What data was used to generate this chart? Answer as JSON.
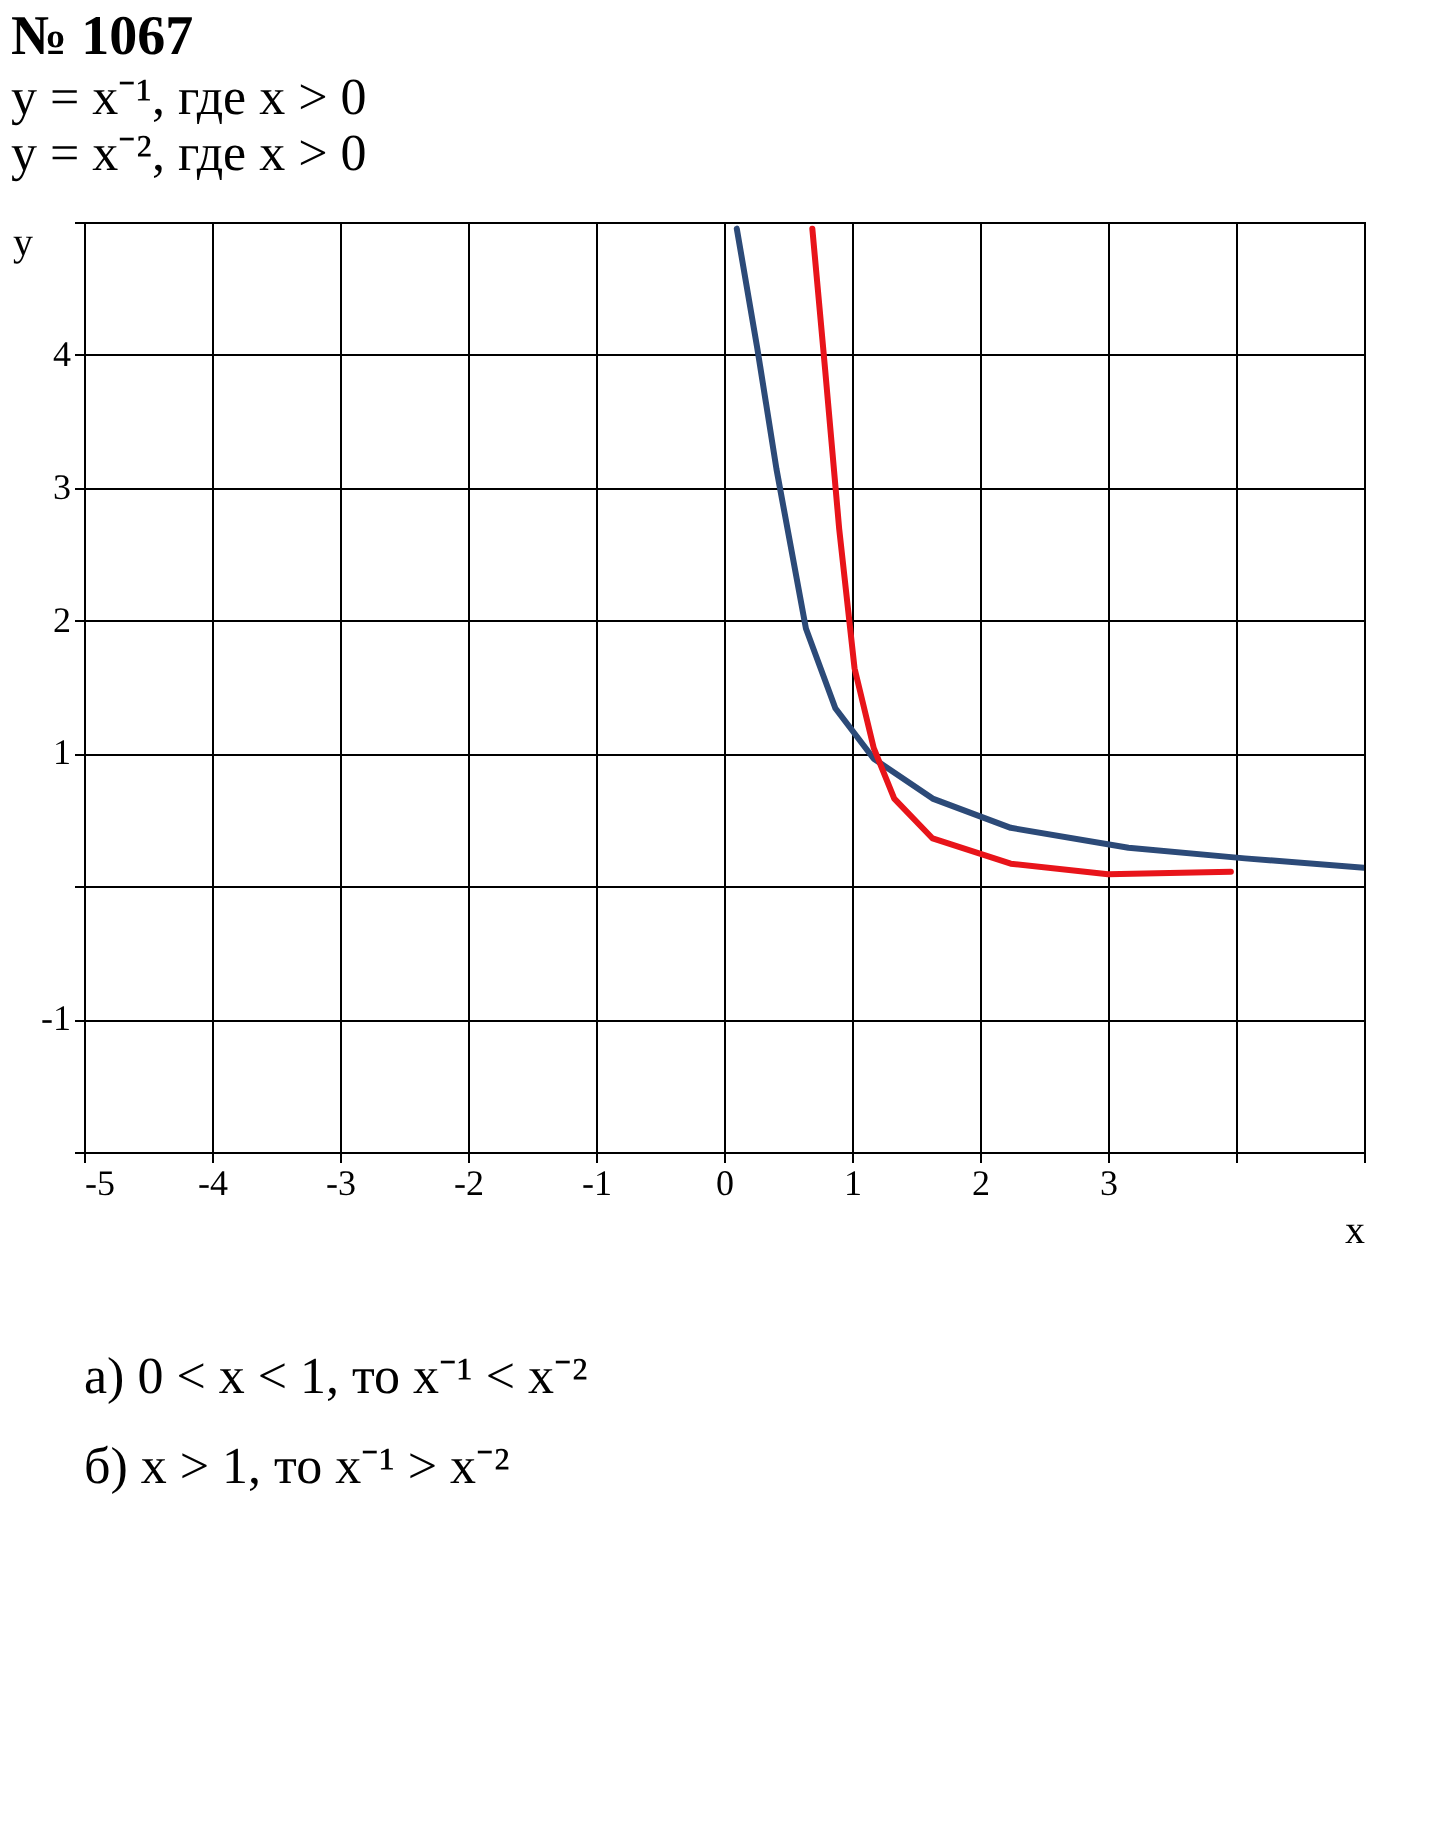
{
  "chart_data": {
    "type": "line",
    "title": "№ 1067",
    "subtitle": "y = x⁻¹, где x > 0\ny = x⁻², где x > 0",
    "xlabel": "x",
    "ylabel": "y",
    "xlim": [
      -5,
      5
    ],
    "ylim": [
      -2,
      5
    ],
    "xticks": [
      -5,
      -4,
      -3,
      -2,
      -1,
      0,
      1,
      2,
      3,
      {
        "value": 4,
        "label": null
      },
      {
        "value": 5,
        "label": null
      }
    ],
    "yticks": [
      {
        "value": -2,
        "label": null
      },
      -1,
      {
        "value": 0,
        "label": null
      },
      1,
      2,
      3,
      4,
      {
        "value": 5,
        "label": null
      }
    ],
    "grid": true,
    "legend": false,
    "marker": "none",
    "line_style": "solid",
    "series": [
      {
        "color": "#2c4a78",
        "x": [
          0.1,
          0.26,
          0.41,
          0.64,
          0.87,
          1.17,
          1.63,
          2.24,
          3.16,
          4.07,
          5.0
        ],
        "values": [
          4.95,
          4.05,
          3.14,
          1.94,
          1.34,
          0.96,
          0.66,
          0.44,
          0.29,
          0.21,
          0.14
        ]
      },
      {
        "color": "#e8141a",
        "x": [
          0.69,
          0.79,
          0.9,
          1.02,
          1.17,
          1.33,
          1.63,
          2.24,
          3.0,
          3.96
        ],
        "values": [
          4.95,
          3.89,
          2.69,
          1.64,
          1.04,
          0.66,
          0.36,
          0.17,
          0.09,
          0.11
        ]
      }
    ],
    "annotations": [
      "а) 0 < x < 1, то x⁻¹ < x⁻²",
      "б) x > 1, то x⁻¹ > x⁻²"
    ]
  }
}
